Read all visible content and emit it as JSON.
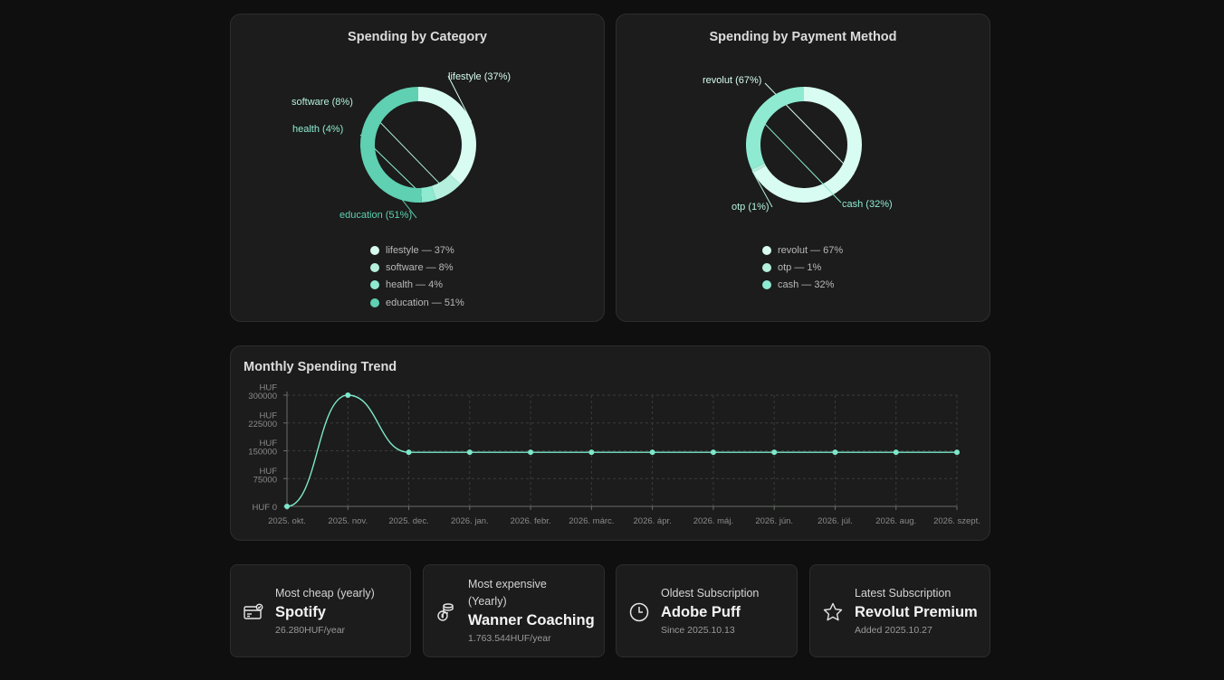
{
  "colors": {
    "background": "#0e0f0e",
    "card": "#1b1c1b",
    "lifestyle": "#d8fcf1",
    "software": "#b4f0dd",
    "health": "#8eead1",
    "education": "#5fd0b2",
    "revolut": "#d8fcf1",
    "otp": "#b4f0dd",
    "cash": "#8eead1",
    "line": "#7ee7cb"
  },
  "category_chart": {
    "title": "Spending by Category",
    "labels": [
      "lifestyle (37%)",
      "software (8%)",
      "health (4%)",
      "education (51%)"
    ],
    "legend": [
      "lifestyle — 37%",
      "software — 8%",
      "health — 4%",
      "education — 51%"
    ]
  },
  "payment_chart": {
    "title": "Spending by Payment Method",
    "labels": [
      "revolut (67%)",
      "otp (1%)",
      "cash (32%)"
    ],
    "legend": [
      "revolut — 67%",
      "otp — 1%",
      "cash — 32%"
    ]
  },
  "trend": {
    "title": "Monthly Spending Trend"
  },
  "chart_data": [
    {
      "type": "pie",
      "title": "Spending by Category",
      "categories": [
        "lifestyle",
        "software",
        "health",
        "education"
      ],
      "values": [
        37,
        8,
        4,
        51
      ]
    },
    {
      "type": "pie",
      "title": "Spending by Payment Method",
      "categories": [
        "revolut",
        "otp",
        "cash"
      ],
      "values": [
        67,
        1,
        32
      ]
    },
    {
      "type": "line",
      "title": "Monthly Spending Trend",
      "categories": [
        "2025. okt.",
        "2025. nov.",
        "2025. dec.",
        "2026. jan.",
        "2026. febr.",
        "2026. márc.",
        "2026. ápr.",
        "2026. máj.",
        "2026. jún.",
        "2026. júl.",
        "2026. aug.",
        "2026. szept."
      ],
      "values": [
        0,
        300000,
        146000,
        146000,
        146000,
        146000,
        146000,
        146000,
        146000,
        146000,
        146000,
        146000
      ],
      "yticks": [
        0,
        75000,
        150000,
        225000,
        300000
      ],
      "ytick_labels": [
        [
          "HUF 0"
        ],
        [
          "HUF",
          "75000"
        ],
        [
          "HUF",
          "150000"
        ],
        [
          "HUF",
          "225000"
        ],
        [
          "HUF",
          "300000"
        ]
      ],
      "ylim": [
        0,
        300000
      ]
    }
  ],
  "stats": [
    {
      "label": "Most cheap (yearly)",
      "value": "Spotify",
      "sub": "26.280HUF/year",
      "icon": "card-icon"
    },
    {
      "label": "Most expensive (Yearly)",
      "value": "Wanner Coaching",
      "sub": "1.763.544HUF/year",
      "icon": "coins-icon"
    },
    {
      "label": "Oldest Subscription",
      "value": "Adobe Puff",
      "sub": "Since 2025.10.13",
      "icon": "clock-icon"
    },
    {
      "label": "Latest Subscription",
      "value": "Revolut Premium",
      "sub": "Added 2025.10.27",
      "icon": "star-icon"
    }
  ]
}
